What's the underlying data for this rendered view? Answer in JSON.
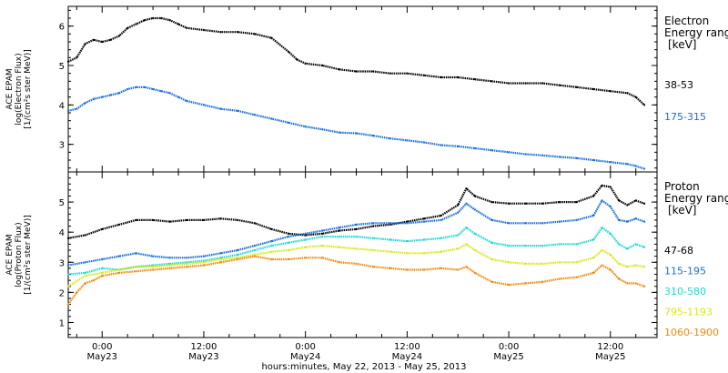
{
  "chart_data": [
    {
      "type": "line",
      "panel": "electron",
      "ylabel_lines": [
        "ACE EPAM",
        "log(Electron Flux)",
        "[1/(cm²s ster MeV)]"
      ],
      "ylim": [
        2.3,
        6.5
      ],
      "yticks": [
        3,
        4,
        5,
        6
      ],
      "xlim_hours": [
        -4,
        65.5
      ],
      "xtick_hours": [
        0,
        12,
        24,
        36,
        48,
        60
      ],
      "legend_title": [
        "Electron",
        "Energy range",
        "[keV]"
      ],
      "series": [
        {
          "name": "38-53",
          "color": "#000000",
          "x": [
            -4,
            -3,
            -2,
            -1,
            0,
            1,
            2,
            3,
            4,
            5,
            6,
            7,
            8,
            9,
            10,
            12,
            14,
            16,
            18,
            20,
            22,
            23,
            24,
            26,
            28,
            30,
            32,
            34,
            36,
            38,
            40,
            42,
            44,
            46,
            48,
            50,
            52,
            54,
            56,
            58,
            60,
            62,
            63,
            64
          ],
          "y": [
            5.1,
            5.2,
            5.55,
            5.65,
            5.6,
            5.65,
            5.75,
            5.95,
            6.05,
            6.15,
            6.2,
            6.2,
            6.15,
            6.05,
            5.95,
            5.9,
            5.85,
            5.85,
            5.8,
            5.7,
            5.35,
            5.15,
            5.05,
            5.0,
            4.9,
            4.85,
            4.85,
            4.8,
            4.8,
            4.75,
            4.7,
            4.7,
            4.65,
            4.6,
            4.55,
            4.55,
            4.55,
            4.5,
            4.45,
            4.4,
            4.35,
            4.3,
            4.2,
            4.0
          ]
        },
        {
          "name": "175-315",
          "color": "#1a6fd6",
          "x": [
            -4,
            -3,
            -2,
            -1,
            0,
            1,
            2,
            3,
            4,
            5,
            6,
            7,
            8,
            9,
            10,
            12,
            14,
            16,
            18,
            20,
            22,
            24,
            26,
            28,
            30,
            32,
            34,
            36,
            38,
            40,
            42,
            44,
            46,
            48,
            50,
            52,
            54,
            56,
            58,
            60,
            62,
            63,
            64
          ],
          "y": [
            3.85,
            3.9,
            4.05,
            4.15,
            4.2,
            4.25,
            4.3,
            4.4,
            4.45,
            4.45,
            4.4,
            4.35,
            4.3,
            4.2,
            4.1,
            4.0,
            3.9,
            3.85,
            3.75,
            3.65,
            3.55,
            3.45,
            3.38,
            3.3,
            3.28,
            3.22,
            3.15,
            3.1,
            3.05,
            2.98,
            2.95,
            2.9,
            2.85,
            2.8,
            2.75,
            2.72,
            2.68,
            2.65,
            2.6,
            2.55,
            2.5,
            2.45,
            2.38
          ]
        }
      ]
    },
    {
      "type": "line",
      "panel": "proton",
      "ylabel_lines": [
        "ACE EPAM",
        "log(Proton Flux)",
        "[1/(cm²s ster MeV)]"
      ],
      "ylim": [
        0.5,
        6.0
      ],
      "yticks": [
        1,
        2,
        3,
        4,
        5
      ],
      "xlim_hours": [
        -4,
        65.5
      ],
      "xtick_hours": [
        0,
        12,
        24,
        36,
        48,
        60
      ],
      "xtick_labels": [
        "0:00",
        "12:00",
        "0:00",
        "12:00",
        "0:00",
        "12:00"
      ],
      "xtick_dates": [
        "May23",
        "May23",
        "May24",
        "May24",
        "May25",
        "May25"
      ],
      "xlabel": "hours:minutes, May 22, 2013 - May 25, 2013",
      "legend_title": [
        "Proton",
        "Energy range",
        "[keV]"
      ],
      "series": [
        {
          "name": "47-68",
          "color": "#000000",
          "x": [
            -4,
            -2,
            0,
            2,
            4,
            6,
            8,
            10,
            12,
            14,
            16,
            18,
            20,
            22,
            24,
            26,
            28,
            30,
            32,
            34,
            36,
            38,
            40,
            42,
            43,
            44,
            46,
            48,
            50,
            52,
            54,
            56,
            58,
            59,
            60,
            61,
            62,
            63,
            64
          ],
          "y": [
            3.8,
            3.9,
            4.1,
            4.25,
            4.4,
            4.4,
            4.35,
            4.4,
            4.4,
            4.45,
            4.4,
            4.3,
            4.1,
            3.95,
            3.9,
            3.95,
            4.05,
            4.1,
            4.2,
            4.25,
            4.35,
            4.45,
            4.55,
            4.9,
            5.45,
            5.2,
            5.0,
            4.95,
            4.95,
            4.95,
            5.0,
            5.0,
            5.2,
            5.55,
            5.5,
            5.05,
            4.9,
            5.05,
            4.95
          ]
        },
        {
          "name": "115-195",
          "color": "#1a6fd6",
          "x": [
            -4,
            -2,
            0,
            2,
            4,
            6,
            8,
            10,
            12,
            14,
            16,
            18,
            20,
            22,
            24,
            26,
            28,
            30,
            32,
            34,
            36,
            38,
            40,
            42,
            43,
            44,
            46,
            48,
            50,
            52,
            54,
            56,
            58,
            59,
            60,
            61,
            62,
            63,
            64
          ],
          "y": [
            2.9,
            3.0,
            3.1,
            3.2,
            3.3,
            3.2,
            3.15,
            3.15,
            3.2,
            3.3,
            3.4,
            3.55,
            3.7,
            3.85,
            3.95,
            4.05,
            4.15,
            4.25,
            4.3,
            4.3,
            4.3,
            4.35,
            4.4,
            4.65,
            4.95,
            4.75,
            4.4,
            4.3,
            4.3,
            4.3,
            4.35,
            4.4,
            4.55,
            5.05,
            4.85,
            4.4,
            4.35,
            4.45,
            4.35
          ]
        },
        {
          "name": "310-580",
          "color": "#20d8d0",
          "x": [
            -4,
            -2,
            0,
            2,
            4,
            6,
            8,
            10,
            12,
            14,
            16,
            18,
            20,
            22,
            24,
            26,
            28,
            30,
            32,
            34,
            36,
            38,
            40,
            42,
            43,
            44,
            46,
            48,
            50,
            52,
            54,
            56,
            58,
            59,
            60,
            61,
            62,
            63,
            64
          ],
          "y": [
            2.6,
            2.65,
            2.8,
            2.75,
            2.85,
            2.9,
            2.95,
            3.0,
            3.05,
            3.15,
            3.25,
            3.4,
            3.55,
            3.65,
            3.75,
            3.85,
            3.85,
            3.85,
            3.8,
            3.75,
            3.7,
            3.75,
            3.8,
            3.9,
            4.15,
            3.95,
            3.65,
            3.55,
            3.55,
            3.55,
            3.6,
            3.6,
            3.75,
            4.15,
            3.95,
            3.6,
            3.45,
            3.6,
            3.5
          ]
        },
        {
          "name": "795-1193",
          "color": "#d8e81a",
          "x": [
            -4,
            -2,
            0,
            2,
            4,
            6,
            8,
            10,
            12,
            14,
            16,
            18,
            20,
            22,
            24,
            26,
            28,
            30,
            32,
            34,
            36,
            38,
            40,
            42,
            43,
            44,
            46,
            48,
            50,
            52,
            54,
            56,
            58,
            59,
            60,
            61,
            62,
            63,
            64
          ],
          "y": [
            2.2,
            2.55,
            2.65,
            2.75,
            2.85,
            2.85,
            2.9,
            2.95,
            3.0,
            3.1,
            3.15,
            3.25,
            3.35,
            3.4,
            3.5,
            3.55,
            3.5,
            3.45,
            3.4,
            3.35,
            3.3,
            3.3,
            3.35,
            3.45,
            3.6,
            3.4,
            3.1,
            3.0,
            2.95,
            2.95,
            3.0,
            3.0,
            3.15,
            3.4,
            3.25,
            2.95,
            2.85,
            2.9,
            2.85
          ]
        },
        {
          "name": "1060-1900",
          "color": "#f08a10",
          "x": [
            -4,
            -3,
            -2,
            -1,
            0,
            2,
            4,
            6,
            8,
            10,
            12,
            14,
            16,
            18,
            20,
            22,
            24,
            26,
            28,
            30,
            32,
            34,
            36,
            38,
            40,
            42,
            43,
            44,
            46,
            48,
            50,
            52,
            54,
            56,
            58,
            59,
            60,
            61,
            62,
            63,
            64
          ],
          "y": [
            1.6,
            2.0,
            2.3,
            2.4,
            2.55,
            2.65,
            2.7,
            2.75,
            2.8,
            2.85,
            2.9,
            3.0,
            3.1,
            3.2,
            3.1,
            3.1,
            3.15,
            3.15,
            3.0,
            2.95,
            2.85,
            2.8,
            2.75,
            2.75,
            2.8,
            2.75,
            2.85,
            2.65,
            2.35,
            2.25,
            2.3,
            2.35,
            2.45,
            2.5,
            2.65,
            2.9,
            2.75,
            2.45,
            2.3,
            2.3,
            2.2
          ]
        }
      ]
    }
  ]
}
